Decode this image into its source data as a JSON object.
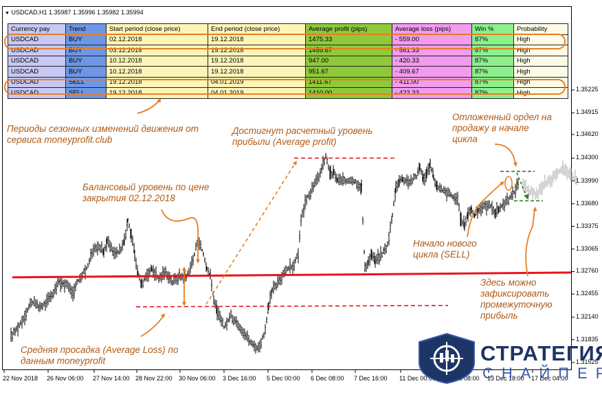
{
  "header": {
    "title": "USDCAD,H1  1.35987 1.35996 1.35982 1.35994"
  },
  "table": {
    "columns": [
      "Currency pay",
      "Trend",
      "Start period (close price)",
      "End period (close price)",
      "Average profit (pips)",
      "Average loss (pips)",
      "Win %",
      "Probability"
    ],
    "rows": [
      [
        "USDCAD",
        "BUY",
        "02.12.2018",
        "19.12.2018",
        "1475.33",
        "- 559.00",
        "87%",
        "High"
      ],
      [
        "USDCAD",
        "BUY",
        "03.12.2018",
        "19.12.2018",
        "1459.67",
        "- 561.33",
        "87%",
        "High"
      ],
      [
        "USDCAD",
        "BUY",
        "10.12.2018",
        "19.12.2018",
        "947.00",
        "- 420.33",
        "87%",
        "High"
      ],
      [
        "USDCAD",
        "BUY",
        "10.12.2018",
        "19.12.2018",
        "951.67",
        "- 409.67",
        "87%",
        "High"
      ],
      [
        "USDCAD",
        "SELL",
        "19.12.2018",
        "04.01.2019",
        "1411.67",
        "- 411.00",
        "87%",
        "High"
      ],
      [
        "USDCAD",
        "SELL",
        "19.12.2018",
        "04.01.2019",
        "1410.00",
        "- 422.33",
        "87%",
        "High"
      ]
    ]
  },
  "annotations": {
    "seasonal": "Периоды сезонных изменений движения от сервиса moneyprofit.club",
    "target": "Достигнут расчетный уровень прибыли (Average profit)",
    "balance": "Балансовый уровень по цене закрытия 02.12.2018",
    "pending": "Отложенный ордел на продажу в начале цикла",
    "new_cycle": "Начало нового цикла (SELL)",
    "partial_profit": "Здесь можно зафиксировать промежуточную прибыль",
    "avg_loss": "Средняя просадка (Average Loss) по данным moneyprofit"
  },
  "logo": {
    "line1": "СТРАТЕГИЯ",
    "line2": "СНАЙПЕР"
  },
  "colors": {
    "candles": "#000000",
    "balance_line": "#e8141a",
    "dashed": "#e8141a",
    "arrows": "#e67e22",
    "pending": "#2e7d1e",
    "future_candles": "#a8a8a8",
    "logo": "#1d3566"
  },
  "chart_data": {
    "type": "candlestick",
    "symbol": "USDCAD",
    "timeframe": "H1",
    "last_price": {
      "open": 1.35987,
      "high": 1.35996,
      "low": 1.35982,
      "close": 1.35994
    },
    "y_ticks": [
      1.35225,
      1.34915,
      1.3462,
      1.343,
      1.3399,
      1.3368,
      1.33375,
      1.33065,
      1.3276,
      1.32455,
      1.3214,
      1.31835,
      1.31525
    ],
    "y_tick_labels": [
      "1.35225",
      "1.34915",
      "1.34620",
      "1.34300",
      "1.33990",
      "1.33680",
      "1.33375",
      "1.33065",
      "1.32760",
      "1.32455",
      "1.32140",
      "1.31835",
      "1.31525"
    ],
    "x_tick_labels": [
      "22 Nov 2018",
      "26 Nov 06:00",
      "27 Nov 14:00",
      "28 Nov 22:00",
      "30 Nov 06:00",
      "3 Dec 16:00",
      "5 Dec 00:00",
      "6 Dec 08:00",
      "7 Dec 16:00",
      "11 Dec 00:00",
      "12 Dec 08:00",
      "13 Dec 18:00",
      "17 Dec 04:00"
    ],
    "close_path": [
      [
        0,
        1.3188
      ],
      [
        10,
        1.32
      ],
      [
        20,
        1.3216
      ],
      [
        30,
        1.3236
      ],
      [
        40,
        1.3228
      ],
      [
        50,
        1.3232
      ],
      [
        60,
        1.3245
      ],
      [
        70,
        1.3262
      ],
      [
        80,
        1.3258
      ],
      [
        90,
        1.3248
      ],
      [
        100,
        1.3268
      ],
      [
        110,
        1.328
      ],
      [
        120,
        1.3306
      ],
      [
        128,
        1.3312
      ],
      [
        135,
        1.3302
      ],
      [
        140,
        1.3318
      ],
      [
        150,
        1.33
      ],
      [
        160,
        1.3305
      ],
      [
        165,
        1.3318
      ],
      [
        170,
        1.3345
      ],
      [
        175,
        1.3326
      ],
      [
        180,
        1.33
      ],
      [
        185,
        1.3272
      ],
      [
        190,
        1.3258
      ],
      [
        196,
        1.327
      ],
      [
        205,
        1.328
      ],
      [
        215,
        1.3266
      ],
      [
        225,
        1.3276
      ],
      [
        235,
        1.3262
      ],
      [
        245,
        1.327
      ],
      [
        255,
        1.3268
      ],
      [
        265,
        1.3292
      ],
      [
        272,
        1.332
      ],
      [
        280,
        1.33
      ],
      [
        285,
        1.328
      ],
      [
        290,
        1.327
      ],
      [
        295,
        1.324
      ],
      [
        300,
        1.3222
      ],
      [
        310,
        1.32
      ],
      [
        320,
        1.3216
      ],
      [
        330,
        1.3206
      ],
      [
        340,
        1.3192
      ],
      [
        350,
        1.3178
      ],
      [
        360,
        1.3172
      ],
      [
        370,
        1.3195
      ],
      [
        375,
        1.323
      ],
      [
        380,
        1.325
      ],
      [
        390,
        1.3262
      ],
      [
        400,
        1.328
      ],
      [
        410,
        1.3282
      ],
      [
        418,
        1.33
      ],
      [
        422,
        1.3345
      ],
      [
        430,
        1.3375
      ],
      [
        440,
        1.339
      ],
      [
        450,
        1.341
      ],
      [
        458,
        1.3432
      ],
      [
        465,
        1.3408
      ],
      [
        470,
        1.341
      ],
      [
        475,
        1.34
      ],
      [
        485,
        1.3398
      ],
      [
        495,
        1.3402
      ],
      [
        505,
        1.3395
      ],
      [
        510,
        1.339
      ],
      [
        515,
        1.328
      ],
      [
        520,
        1.329
      ],
      [
        525,
        1.33
      ],
      [
        530,
        1.329
      ],
      [
        540,
        1.33
      ],
      [
        548,
        1.3312
      ],
      [
        555,
        1.3352
      ],
      [
        560,
        1.339
      ],
      [
        565,
        1.34
      ],
      [
        570,
        1.3402
      ],
      [
        580,
        1.3398
      ],
      [
        590,
        1.3405
      ],
      [
        595,
        1.342
      ],
      [
        600,
        1.34
      ],
      [
        605,
        1.341
      ],
      [
        610,
        1.342
      ],
      [
        615,
        1.3405
      ],
      [
        620,
        1.339
      ],
      [
        630,
        1.3385
      ],
      [
        640,
        1.338
      ],
      [
        650,
        1.3372
      ],
      [
        655,
        1.3345
      ],
      [
        660,
        1.334
      ],
      [
        665,
        1.3355
      ],
      [
        670,
        1.336
      ],
      [
        675,
        1.3352
      ],
      [
        680,
        1.336
      ],
      [
        690,
        1.3365
      ],
      [
        700,
        1.3365
      ],
      [
        705,
        1.3355
      ],
      [
        710,
        1.3362
      ],
      [
        720,
        1.337
      ],
      [
        730,
        1.338
      ],
      [
        740,
        1.34
      ]
    ],
    "future_path": [
      [
        745,
        1.3392
      ],
      [
        755,
        1.3385
      ],
      [
        765,
        1.338
      ],
      [
        775,
        1.3395
      ],
      [
        785,
        1.34
      ],
      [
        795,
        1.341
      ],
      [
        805,
        1.3415
      ],
      [
        815,
        1.3405
      ],
      [
        825,
        1.34
      ]
    ],
    "levels": {
      "balance_level": 1.327,
      "average_profit_level": 1.343,
      "average_loss_level": 1.323,
      "pending_entry": 1.3412,
      "pending_target": 1.3372
    }
  }
}
